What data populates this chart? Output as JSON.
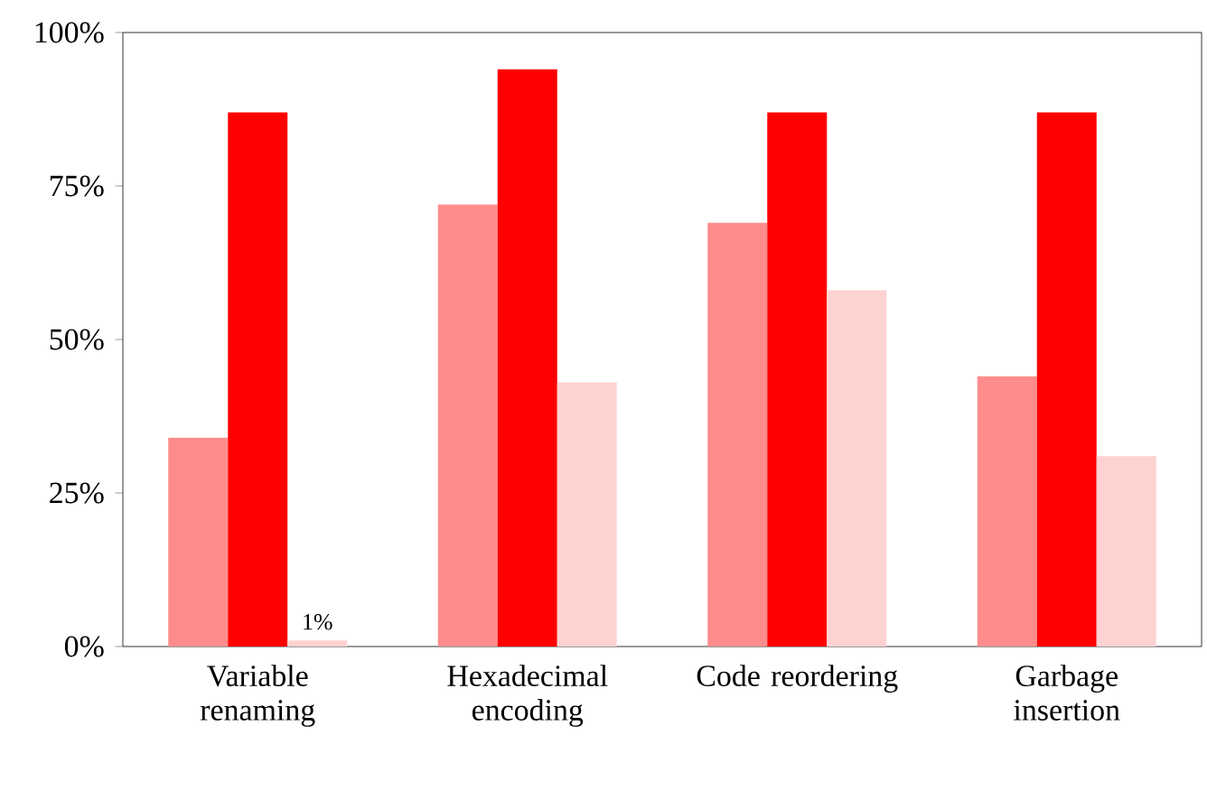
{
  "chart_data": {
    "type": "bar",
    "categories": [
      "Variable renaming",
      "Hexadecimal encoding",
      "Code reordering",
      "Garbage insertion"
    ],
    "series": [
      {
        "color": "#ff8c8c",
        "values": [
          34,
          72,
          69,
          44
        ]
      },
      {
        "color": "#ff0000",
        "values": [
          87,
          94,
          87,
          87
        ]
      },
      {
        "color": "#ffd2d2",
        "values": [
          1,
          43,
          58,
          31
        ],
        "value_labels": [
          "1%",
          null,
          null,
          null
        ]
      }
    ],
    "ylim": [
      0,
      100
    ],
    "yticks": [
      {
        "value": 0,
        "label": "0%"
      },
      {
        "value": 25,
        "label": "25%"
      },
      {
        "value": 50,
        "label": "50%"
      },
      {
        "value": 75,
        "label": "75%"
      },
      {
        "value": 100,
        "label": "100%"
      }
    ]
  }
}
